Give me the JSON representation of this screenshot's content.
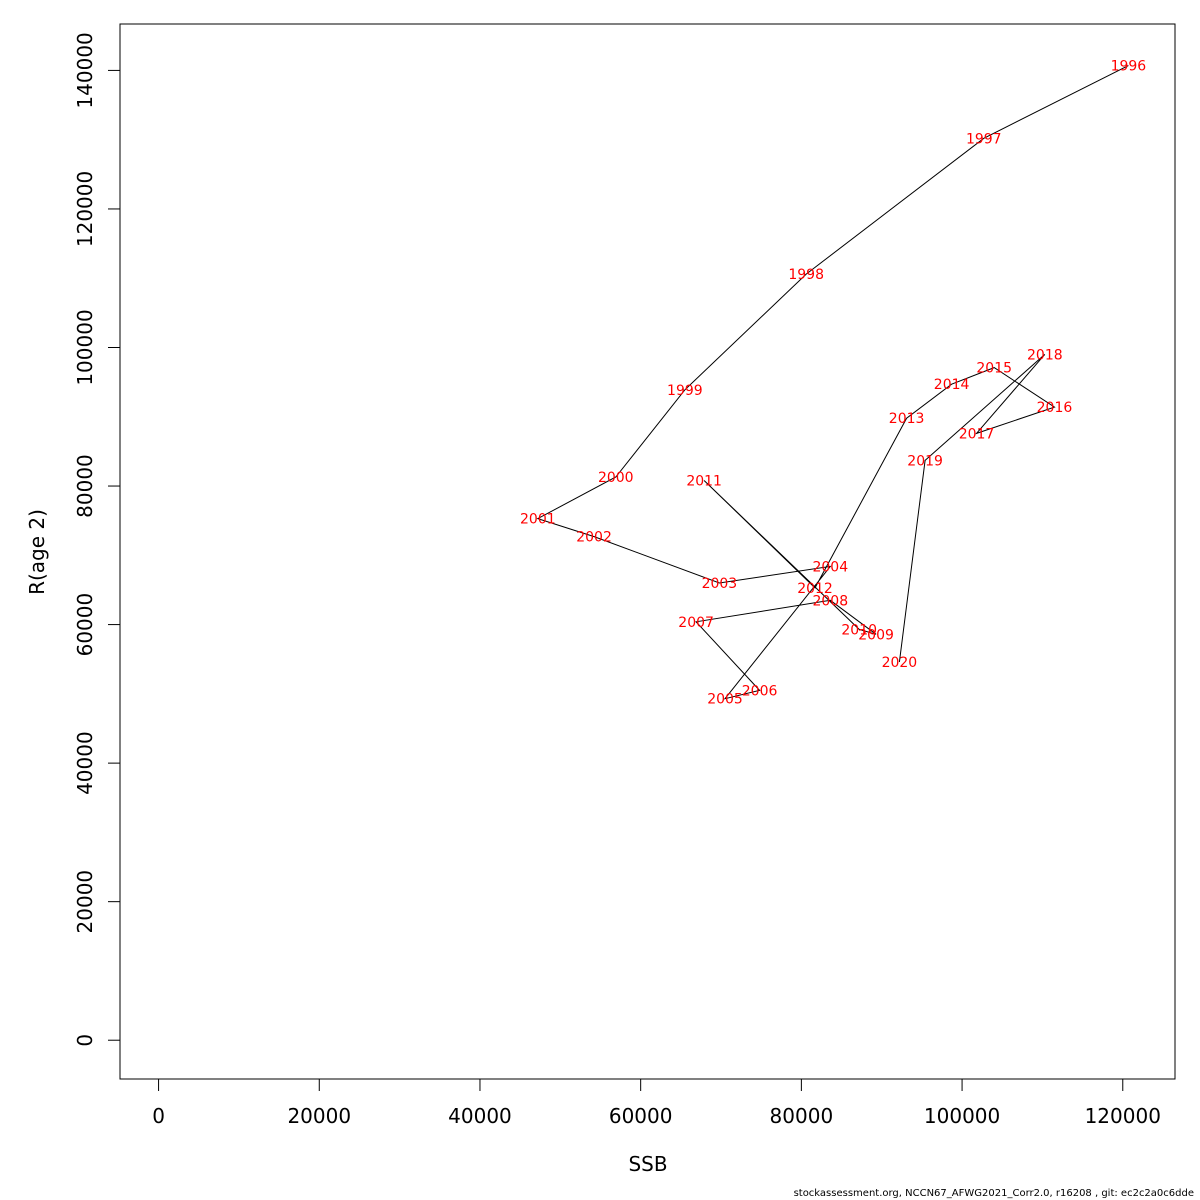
{
  "footer_text": "stockassessment.org, NCCN67_AFWG2021_Corr2.0, r16208 , git: ec2c2a0c6dde",
  "chart_data": {
    "type": "line",
    "title": "",
    "xlabel": "SSB",
    "ylabel": "R(age 2)",
    "xlim": [
      -4800,
      126500
    ],
    "ylim": [
      -5600,
      146700
    ],
    "xticks": [
      0,
      20000,
      40000,
      60000,
      80000,
      100000,
      120000
    ],
    "yticks": [
      0,
      20000,
      40000,
      60000,
      80000,
      100000,
      120000,
      140000
    ],
    "grid": false,
    "legend": "none",
    "line_color": "#000000",
    "label_color": "#ff0000",
    "points": [
      {
        "year": "1996",
        "ssb": 120700,
        "r": 140700
      },
      {
        "year": "1997",
        "ssb": 102700,
        "r": 130200
      },
      {
        "year": "1998",
        "ssb": 80600,
        "r": 110600
      },
      {
        "year": "1999",
        "ssb": 65500,
        "r": 93900
      },
      {
        "year": "2000",
        "ssb": 56900,
        "r": 81300
      },
      {
        "year": "2001",
        "ssb": 47200,
        "r": 75300
      },
      {
        "year": "2002",
        "ssb": 54200,
        "r": 72700
      },
      {
        "year": "2003",
        "ssb": 69800,
        "r": 66000
      },
      {
        "year": "2004",
        "ssb": 83600,
        "r": 68400
      },
      {
        "year": "2005",
        "ssb": 70500,
        "r": 49300
      },
      {
        "year": "2006",
        "ssb": 74800,
        "r": 50500
      },
      {
        "year": "2007",
        "ssb": 66900,
        "r": 60400
      },
      {
        "year": "2008",
        "ssb": 83600,
        "r": 63500
      },
      {
        "year": "2009",
        "ssb": 89300,
        "r": 58600
      },
      {
        "year": "2010",
        "ssb": 87200,
        "r": 59300
      },
      {
        "year": "2011",
        "ssb": 67900,
        "r": 80800
      },
      {
        "year": "2012",
        "ssb": 81700,
        "r": 65300
      },
      {
        "year": "2013",
        "ssb": 93100,
        "r": 89800
      },
      {
        "year": "2014",
        "ssb": 98700,
        "r": 94700
      },
      {
        "year": "2015",
        "ssb": 104000,
        "r": 97100
      },
      {
        "year": "2016",
        "ssb": 111500,
        "r": 91400
      },
      {
        "year": "2017",
        "ssb": 101800,
        "r": 87600
      },
      {
        "year": "2018",
        "ssb": 110300,
        "r": 99000
      },
      {
        "year": "2019",
        "ssb": 95400,
        "r": 83700
      },
      {
        "year": "2020",
        "ssb": 92200,
        "r": 54600
      }
    ]
  }
}
